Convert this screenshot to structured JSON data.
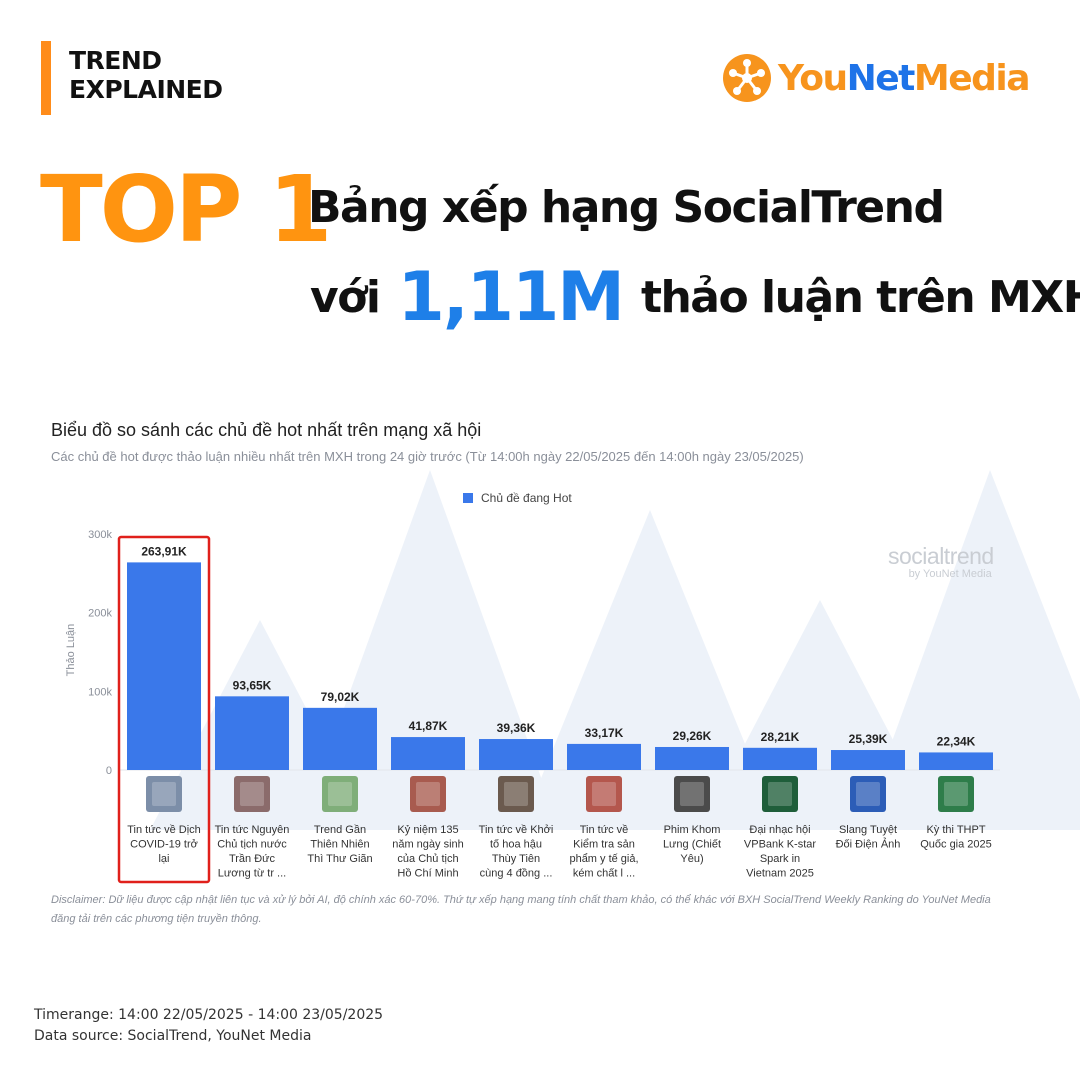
{
  "header": {
    "tag_line1": "TREND",
    "tag_line2": "EXPLAINED",
    "brand_you": "You",
    "brand_net": "Net",
    "brand_media": "Media"
  },
  "headline": {
    "rank": "TOP 1",
    "line1": "Bảng xếp hạng SocialTrend",
    "line2_pre": "với",
    "line2_big": "1,11M",
    "line2_post": "thảo luận trên MXH"
  },
  "watermark": {
    "line1": "socialtrend",
    "line2": "by YouNet Media"
  },
  "chart_data": {
    "type": "bar",
    "title": "Biểu đồ so sánh các chủ đề hot nhất trên mạng xã hội",
    "subtitle": "Các chủ đề hot được thảo luận nhiều nhất trên MXH trong 24 giờ trước (Từ 14:00h ngày 22/05/2025 đến 14:00h ngày 23/05/2025)",
    "ylabel": "Thảo Luận",
    "xlabel": "",
    "ylim": [
      0,
      300000
    ],
    "yticks": [
      0,
      100000,
      200000,
      300000
    ],
    "ytick_labels": [
      "0",
      "100k",
      "200k",
      "300k"
    ],
    "legend": "top-center",
    "grid": false,
    "series": [
      {
        "name": "Chủ đề đang Hot",
        "color": "#3a78ea",
        "values": [
          263910,
          93650,
          79020,
          41870,
          39360,
          33170,
          29260,
          28210,
          25390,
          22340
        ],
        "data_labels": [
          "263,91K",
          "93,65K",
          "79,02K",
          "41,87K",
          "39,36K",
          "33,17K",
          "29,26K",
          "28,21K",
          "25,39K",
          "22,34K"
        ]
      }
    ],
    "categories": [
      [
        "Tin tức về Dịch",
        "COVID-19 trở",
        "lại"
      ],
      [
        "Tin tức Nguyên",
        "Chủ tịch nước",
        "Trần Đức",
        "Lương từ tr ..."
      ],
      [
        "Trend Gần",
        "Thiên Nhiên",
        "Thì Thư Giãn"
      ],
      [
        "Kỷ niệm 135",
        "năm ngày sinh",
        "của Chủ tịch",
        "Hồ Chí Minh"
      ],
      [
        "Tin tức về Khởi",
        "tố hoa hậu",
        "Thùy Tiên",
        "cùng 4 đồng ..."
      ],
      [
        "Tin tức về",
        "Kiểm tra sản",
        "phẩm y tế giả,",
        "kém chất l ..."
      ],
      [
        "Phim Khom",
        "Lưng (Chiết",
        "Yêu)"
      ],
      [
        "Đại nhạc hội",
        "VPBank K-star",
        "Spark in",
        "Vietnam 2025"
      ],
      [
        "Slang Tuyệt",
        "Đối Điện Ảnh"
      ],
      [
        "Kỳ thi THPT",
        "Quốc gia 2025"
      ]
    ],
    "highlight_index": 0,
    "highlight_color": "#e0201b"
  },
  "disclaimer": "Disclaimer: Dữ liệu được cập nhật liên tục và xử lý bởi AI, độ chính xác 60-70%. Thứ tự xếp hạng mang tính chất tham khảo, có thể khác với BXH SocialTrend Weekly Ranking do YouNet Media đăng tải trên các phương tiện truyền thông.",
  "footer": {
    "timerange": "Timerange: 14:00 22/05/2025 - 14:00 23/05/2025",
    "source": "Data source: SocialTrend, YouNet Media"
  },
  "colors": {
    "accent_orange": "#ff9410",
    "accent_blue": "#1e7fe8",
    "bar": "#3a78ea"
  }
}
